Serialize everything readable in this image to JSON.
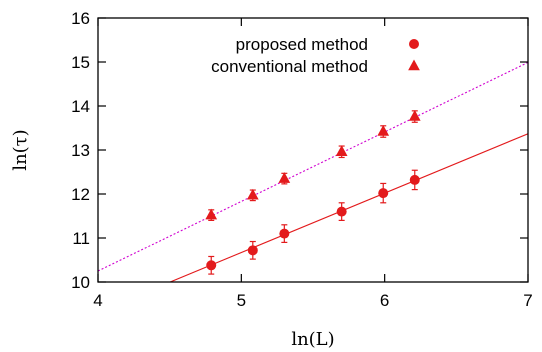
{
  "chart_data": {
    "type": "scatter",
    "title": "",
    "xlabel": "ln(L)",
    "ylabel": "ln(τ)",
    "xlim": [
      4,
      7
    ],
    "ylim": [
      10,
      16
    ],
    "xticks": [
      "4",
      "5",
      "6",
      "7"
    ],
    "yticks": [
      "10",
      "11",
      "12",
      "13",
      "14",
      "15",
      "16"
    ],
    "grid": false,
    "legend_position": "top-right",
    "colors": {
      "series": "#e31a1c",
      "fit_solid": "#e31a1c",
      "fit_dotted": "#d000d0",
      "axes": "#000000"
    },
    "series": [
      {
        "name": "proposed method",
        "marker": "circle",
        "x": [
          4.79,
          5.08,
          5.3,
          5.7,
          5.99,
          6.21
        ],
        "y": [
          10.38,
          10.72,
          11.1,
          11.6,
          12.02,
          12.32
        ],
        "err": [
          0.2,
          0.2,
          0.2,
          0.2,
          0.22,
          0.22
        ],
        "fit": {
          "style": "solid",
          "slope": 1.35,
          "intercept": 3.92
        }
      },
      {
        "name": "conventional method",
        "marker": "triangle",
        "x": [
          4.79,
          5.08,
          5.3,
          5.7,
          5.99,
          6.21
        ],
        "y": [
          11.52,
          11.97,
          12.35,
          12.96,
          13.42,
          13.76
        ],
        "err": [
          0.12,
          0.12,
          0.12,
          0.13,
          0.13,
          0.13
        ],
        "fit": {
          "style": "dotted",
          "slope": 1.58,
          "intercept": 3.93
        }
      }
    ]
  }
}
